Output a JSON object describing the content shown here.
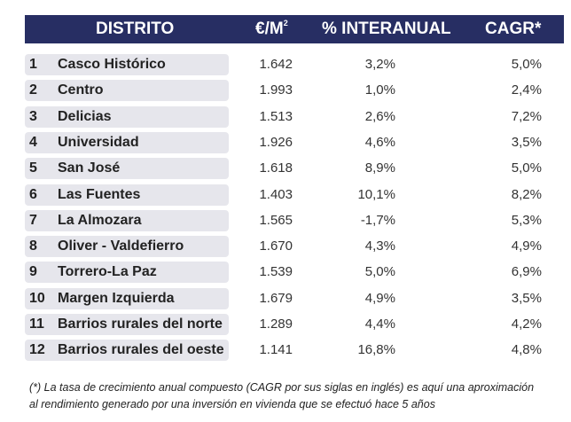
{
  "header": {
    "distrito": "DISTRITO",
    "eur_m": "€/M",
    "eur_sup": "2",
    "interanual": "% INTERANUAL",
    "cagr": "CAGR*"
  },
  "rows": [
    {
      "num": "1",
      "name": "Casco Histórico",
      "eur": "1.642",
      "inter": "3,2%",
      "cagr": "5,0%"
    },
    {
      "num": "2",
      "name": "Centro",
      "eur": "1.993",
      "inter": "1,0%",
      "cagr": "2,4%"
    },
    {
      "num": "3",
      "name": "Delicias",
      "eur": "1.513",
      "inter": "2,6%",
      "cagr": "7,2%"
    },
    {
      "num": "4",
      "name": "Universidad",
      "eur": "1.926",
      "inter": "4,6%",
      "cagr": "3,5%"
    },
    {
      "num": "5",
      "name": "San José",
      "eur": "1.618",
      "inter": "8,9%",
      "cagr": "5,0%"
    },
    {
      "num": "6",
      "name": "Las Fuentes",
      "eur": "1.403",
      "inter": "10,1%",
      "cagr": "8,2%"
    },
    {
      "num": "7",
      "name": "La Almozara",
      "eur": "1.565",
      "inter": "-1,7%",
      "cagr": "5,3%"
    },
    {
      "num": "8",
      "name": "Oliver - Valdefierro",
      "eur": "1.670",
      "inter": "4,3%",
      "cagr": "4,9%"
    },
    {
      "num": "9",
      "name": "Torrero-La Paz",
      "eur": "1.539",
      "inter": "5,0%",
      "cagr": "6,9%"
    },
    {
      "num": "10",
      "name": "Margen Izquierda",
      "eur": "1.679",
      "inter": "4,9%",
      "cagr": "3,5%"
    },
    {
      "num": "11",
      "name": "Barrios rurales del norte",
      "eur": "1.289",
      "inter": "4,4%",
      "cagr": "4,2%"
    },
    {
      "num": "12",
      "name": "Barrios rurales del oeste",
      "eur": "1.141",
      "inter": "16,8%",
      "cagr": "4,8%"
    }
  ],
  "footnote": {
    "line1": "(*) La tasa de crecimiento anual compuesto (CAGR por sus siglas en inglés) es aquí una aproximación",
    "line2": "al rendimiento generado por una inversión en vivienda que se efectuó hace 5 años"
  }
}
